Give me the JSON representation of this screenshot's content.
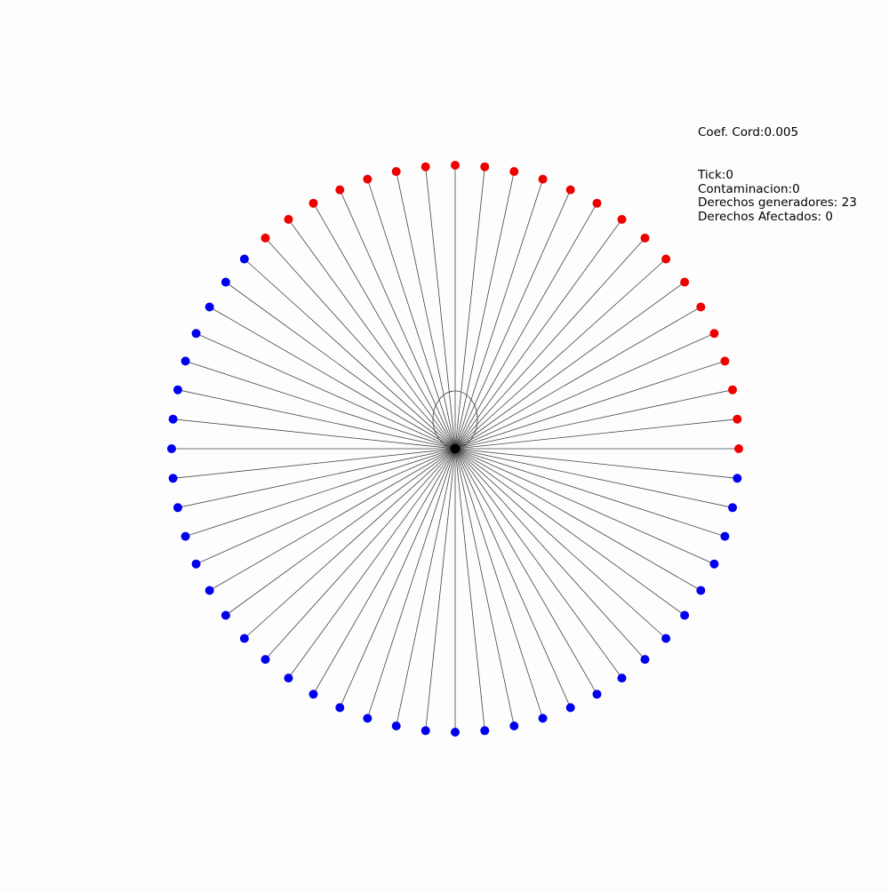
{
  "coef_label": "Coef. Cord:0.005",
  "stats": {
    "tick": "Tick:0",
    "contaminacion": "Contaminacion:0",
    "derechos_generadores": "Derechos generadores: 23",
    "derechos_afectados": "Derechos Afectados: 0"
  },
  "graph": {
    "node_count": 60,
    "generator_count": 23,
    "colors": {
      "generator": "#ee0000",
      "affected": "#0000ee",
      "hub": "#000000",
      "edge": "#444444"
    }
  }
}
